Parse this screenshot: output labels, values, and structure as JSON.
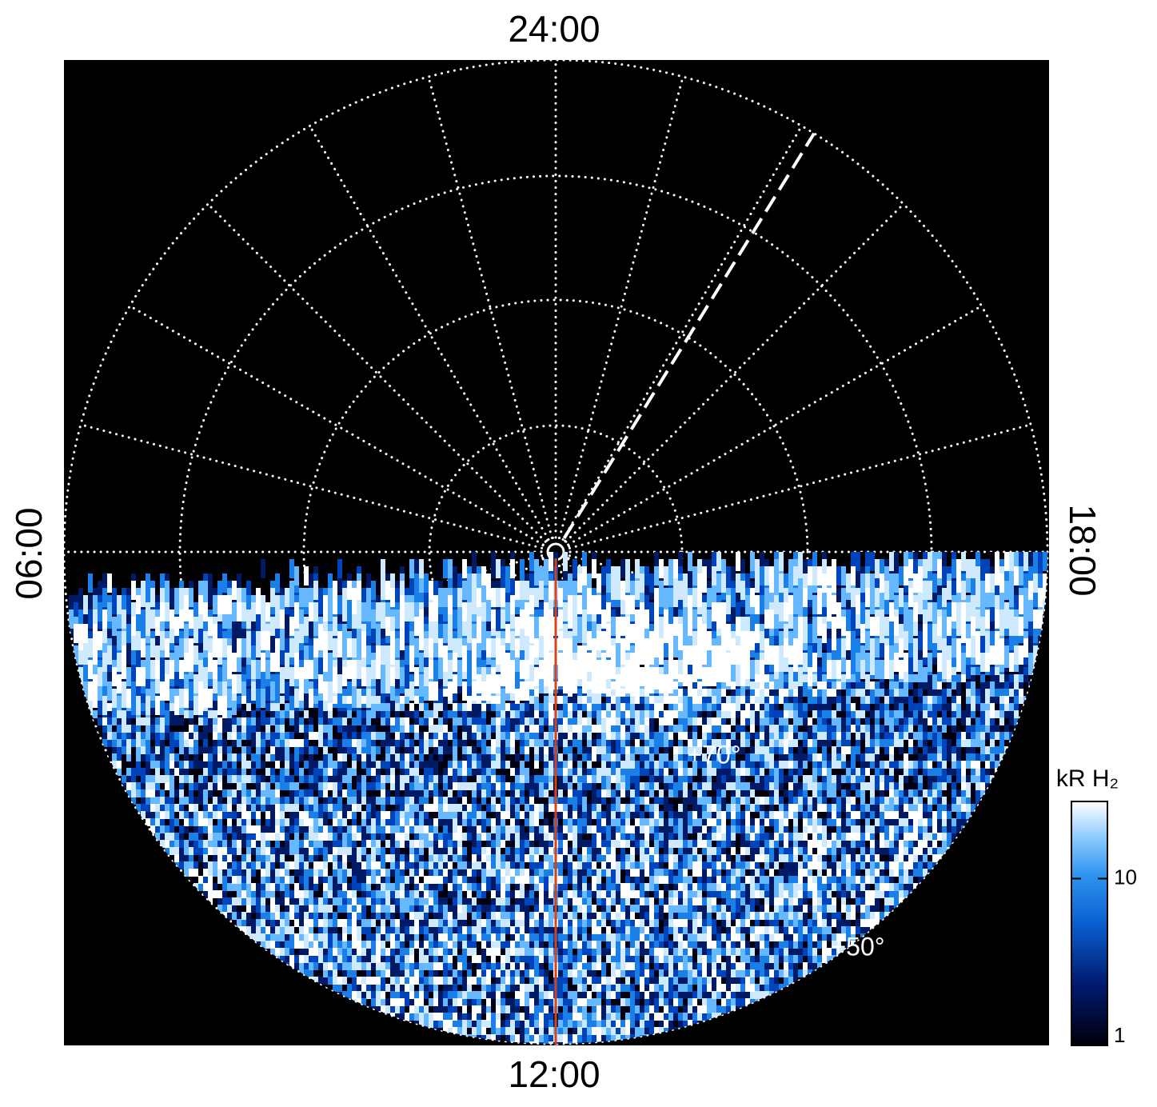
{
  "plot": {
    "local_time_labels": {
      "top": "24:00",
      "bottom": "12:00",
      "left": "06:00",
      "right": "18:00"
    },
    "latitude_labels": [
      "+70°",
      "+50°"
    ],
    "colorbar": {
      "label": "kR H₂",
      "scale": "log",
      "lim": [
        1,
        29
      ],
      "ticks": [
        1,
        10
      ]
    }
  }
}
